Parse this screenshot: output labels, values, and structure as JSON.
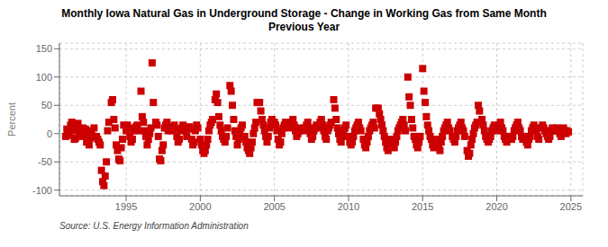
{
  "chart_data": {
    "type": "scatter",
    "title": "Monthly Iowa Natural Gas in Underground Storage - Change in Working Gas from Same Month\nPrevious Year",
    "ylabel": "Percent",
    "annotations": [
      "Source: U.S. Energy Information Administration"
    ],
    "color": "#cc0000",
    "marker": "square",
    "grid": true,
    "xlim": [
      1990.5,
      2025.8
    ],
    "xticks": [
      1995,
      2000,
      2005,
      2010,
      2015,
      2020,
      2025
    ],
    "ylim": [
      -110,
      160
    ],
    "yticks": [
      -100,
      -50,
      0,
      50,
      100,
      150
    ],
    "x": [
      1990.917,
      1991.0,
      1991.083,
      1991.167,
      1991.25,
      1991.333,
      1991.417,
      1991.5,
      1991.583,
      1991.667,
      1991.75,
      1991.833,
      1992.0,
      1992.083,
      1992.167,
      1992.25,
      1992.333,
      1992.417,
      1992.5,
      1992.583,
      1992.667,
      1992.75,
      1992.833,
      1993.0,
      1993.083,
      1993.167,
      1993.25,
      1993.333,
      1993.417,
      1993.5,
      1993.583,
      1993.667,
      1993.75,
      1993.833,
      1994.0,
      1994.083,
      1994.167,
      1994.25,
      1994.333,
      1994.417,
      1994.5,
      1994.583,
      1994.667,
      1994.75,
      1994.833,
      1995.0,
      1995.083,
      1995.167,
      1995.25,
      1995.333,
      1995.417,
      1995.5,
      1995.583,
      1995.667,
      1995.75,
      1995.833,
      1996.0,
      1996.083,
      1996.167,
      1996.25,
      1996.333,
      1996.417,
      1996.5,
      1996.583,
      1996.667,
      1996.75,
      1996.833,
      1997.0,
      1997.083,
      1997.167,
      1997.25,
      1997.333,
      1997.417,
      1997.5,
      1997.583,
      1997.667,
      1997.75,
      1997.833,
      1998.0,
      1998.083,
      1998.167,
      1998.25,
      1998.333,
      1998.417,
      1998.5,
      1998.583,
      1998.667,
      1998.75,
      1998.833,
      1999.0,
      1999.083,
      1999.167,
      1999.25,
      1999.333,
      1999.417,
      1999.5,
      1999.583,
      1999.667,
      1999.75,
      1999.833,
      2000.0,
      2000.083,
      2000.167,
      2000.25,
      2000.333,
      2000.417,
      2000.5,
      2000.583,
      2000.667,
      2000.75,
      2000.833,
      2001.0,
      2001.083,
      2001.167,
      2001.25,
      2001.333,
      2001.417,
      2001.5,
      2001.583,
      2001.667,
      2001.75,
      2001.833,
      2002.0,
      2002.083,
      2002.167,
      2002.25,
      2002.333,
      2002.417,
      2002.5,
      2002.583,
      2002.667,
      2002.75,
      2002.833,
      2003.0,
      2003.083,
      2003.167,
      2003.25,
      2003.333,
      2003.417,
      2003.5,
      2003.583,
      2003.667,
      2003.75,
      2003.833,
      2004.0,
      2004.083,
      2004.167,
      2004.25,
      2004.333,
      2004.417,
      2004.5,
      2004.583,
      2004.667,
      2004.75,
      2004.833,
      2005.0,
      2005.083,
      2005.167,
      2005.25,
      2005.333,
      2005.417,
      2005.5,
      2005.583,
      2005.667,
      2005.75,
      2005.833,
      2006.0,
      2006.083,
      2006.167,
      2006.25,
      2006.333,
      2006.417,
      2006.5,
      2006.583,
      2006.667,
      2006.75,
      2006.833,
      2007.0,
      2007.083,
      2007.167,
      2007.25,
      2007.333,
      2007.417,
      2007.5,
      2007.583,
      2007.667,
      2007.75,
      2007.833,
      2008.0,
      2008.083,
      2008.167,
      2008.25,
      2008.333,
      2008.417,
      2008.5,
      2008.583,
      2008.667,
      2008.75,
      2008.833,
      2009.0,
      2009.083,
      2009.167,
      2009.25,
      2009.333,
      2009.417,
      2009.5,
      2009.583,
      2009.667,
      2009.75,
      2009.833,
      2010.0,
      2010.083,
      2010.167,
      2010.25,
      2010.333,
      2010.417,
      2010.5,
      2010.583,
      2010.667,
      2010.75,
      2010.833,
      2011.0,
      2011.083,
      2011.167,
      2011.25,
      2011.333,
      2011.417,
      2011.5,
      2011.583,
      2011.667,
      2011.75,
      2011.833,
      2012.0,
      2012.083,
      2012.167,
      2012.25,
      2012.333,
      2012.417,
      2012.5,
      2012.583,
      2012.667,
      2012.75,
      2012.833,
      2013.0,
      2013.083,
      2013.167,
      2013.25,
      2013.333,
      2013.417,
      2013.5,
      2013.583,
      2013.667,
      2013.75,
      2013.833,
      2014.0,
      2014.083,
      2014.167,
      2014.25,
      2014.333,
      2014.417,
      2014.5,
      2014.583,
      2014.667,
      2014.75,
      2014.833,
      2015.0,
      2015.083,
      2015.167,
      2015.25,
      2015.333,
      2015.417,
      2015.5,
      2015.583,
      2015.667,
      2015.75,
      2015.833,
      2016.0,
      2016.083,
      2016.167,
      2016.25,
      2016.333,
      2016.417,
      2016.5,
      2016.583,
      2016.667,
      2016.75,
      2016.833,
      2017.0,
      2017.083,
      2017.167,
      2017.25,
      2017.333,
      2017.417,
      2017.5,
      2017.583,
      2017.667,
      2017.75,
      2017.833,
      2018.0,
      2018.083,
      2018.167,
      2018.25,
      2018.333,
      2018.417,
      2018.5,
      2018.583,
      2018.667,
      2018.75,
      2018.833,
      2019.0,
      2019.083,
      2019.167,
      2019.25,
      2019.333,
      2019.417,
      2019.5,
      2019.583,
      2019.667,
      2019.75,
      2019.833,
      2020.0,
      2020.083,
      2020.167,
      2020.25,
      2020.333,
      2020.417,
      2020.5,
      2020.583,
      2020.667,
      2020.75,
      2020.833,
      2021.0,
      2021.083,
      2021.167,
      2021.25,
      2021.333,
      2021.417,
      2021.5,
      2021.583,
      2021.667,
      2021.75,
      2021.833,
      2022.0,
      2022.083,
      2022.167,
      2022.25,
      2022.333,
      2022.417,
      2022.5,
      2022.583,
      2022.667,
      2022.75,
      2022.833,
      2023.0,
      2023.083,
      2023.167,
      2023.25,
      2023.333,
      2023.417,
      2023.5,
      2023.583,
      2023.667,
      2023.75,
      2023.833,
      2024.0,
      2024.083,
      2024.167,
      2024.25,
      2024.333,
      2024.417,
      2024.5,
      2024.583,
      2024.667,
      2024.75,
      2024.833
    ],
    "values": [
      -5,
      8,
      2,
      -3,
      15,
      20,
      5,
      -10,
      -8,
      12,
      18,
      3,
      -5,
      10,
      -2,
      8,
      -15,
      5,
      -20,
      -8,
      0,
      -5,
      10,
      -5,
      -10,
      -15,
      -20,
      -65,
      -85,
      -92,
      -75,
      -50,
      5,
      20,
      55,
      60,
      25,
      10,
      -20,
      -30,
      -45,
      -48,
      -25,
      -10,
      15,
      5,
      15,
      10,
      -5,
      -15,
      -10,
      5,
      8,
      12,
      15,
      5,
      75,
      30,
      20,
      5,
      -5,
      -20,
      -10,
      0,
      10,
      125,
      55,
      20,
      15,
      -5,
      -45,
      -48,
      -30,
      -20,
      10,
      15,
      20,
      5,
      10,
      5,
      12,
      15,
      8,
      -5,
      -15,
      -10,
      5,
      10,
      15,
      5,
      -5,
      10,
      12,
      8,
      -10,
      -20,
      -15,
      5,
      15,
      10,
      -10,
      -20,
      -30,
      -35,
      -30,
      -20,
      -10,
      5,
      15,
      20,
      25,
      60,
      70,
      55,
      30,
      15,
      5,
      -5,
      -10,
      -15,
      -5,
      10,
      85,
      75,
      50,
      25,
      5,
      -5,
      -20,
      -10,
      0,
      10,
      15,
      -5,
      -15,
      -25,
      -30,
      -35,
      -25,
      -15,
      0,
      10,
      20,
      55,
      55,
      40,
      25,
      15,
      5,
      -5,
      -15,
      -5,
      10,
      20,
      25,
      20,
      15,
      5,
      -10,
      -20,
      -15,
      0,
      10,
      15,
      20,
      15,
      10,
      15,
      20,
      25,
      15,
      5,
      -5,
      0,
      5,
      10,
      8,
      5,
      10,
      15,
      20,
      10,
      0,
      -10,
      -5,
      5,
      10,
      15,
      10,
      20,
      25,
      15,
      5,
      -5,
      -10,
      5,
      10,
      15,
      20,
      60,
      45,
      25,
      10,
      0,
      -10,
      -15,
      -5,
      5,
      10,
      15,
      -5,
      -15,
      -20,
      -15,
      -5,
      5,
      10,
      15,
      20,
      10,
      5,
      -10,
      -20,
      -25,
      -15,
      -5,
      5,
      10,
      15,
      20,
      10,
      45,
      45,
      35,
      25,
      15,
      5,
      -5,
      -15,
      -25,
      -30,
      -20,
      -10,
      -20,
      -25,
      -15,
      -5,
      5,
      10,
      15,
      20,
      25,
      15,
      5,
      100,
      65,
      50,
      25,
      10,
      -5,
      -10,
      -20,
      -25,
      -15,
      -5,
      115,
      75,
      55,
      30,
      15,
      5,
      -5,
      -10,
      -20,
      -25,
      -15,
      -10,
      -20,
      -30,
      -15,
      -5,
      5,
      10,
      15,
      20,
      10,
      5,
      -5,
      -10,
      -15,
      -5,
      5,
      10,
      15,
      20,
      10,
      5,
      -5,
      -30,
      -40,
      -35,
      -20,
      -10,
      0,
      10,
      15,
      20,
      50,
      40,
      25,
      15,
      5,
      -5,
      -10,
      -15,
      -10,
      -5,
      5,
      10,
      15,
      5,
      10,
      15,
      20,
      10,
      5,
      -5,
      -10,
      -15,
      -10,
      -5,
      -10,
      -5,
      5,
      10,
      15,
      20,
      10,
      5,
      -5,
      -10,
      -5,
      -15,
      -20,
      -10,
      -5,
      5,
      10,
      15,
      10,
      5,
      -5,
      -10,
      10,
      15,
      10,
      5,
      0,
      -5,
      -10,
      -5,
      5,
      10,
      5,
      5,
      10,
      5,
      0,
      -5,
      5,
      10,
      5,
      0,
      5,
      3
    ]
  }
}
